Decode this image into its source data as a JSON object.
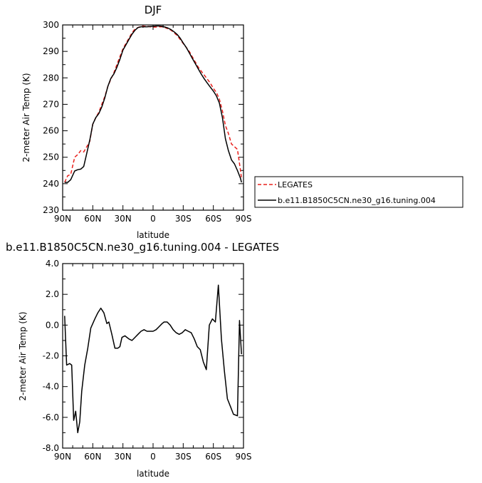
{
  "chart_data": [
    {
      "type": "line",
      "title": "DJF",
      "xlabel": "latitude",
      "ylabel": "2-meter Air Temp (K)",
      "xlim": [
        90,
        -90
      ],
      "ylim": [
        230,
        300
      ],
      "xticks": [
        90,
        60,
        30,
        0,
        -30,
        -60,
        -90
      ],
      "xtick_labels": [
        "90N",
        "60N",
        "30N",
        "0",
        "30S",
        "60S",
        "90S"
      ],
      "yticks": [
        230,
        240,
        250,
        260,
        270,
        280,
        290,
        300
      ],
      "ytick_labels": [
        "230",
        "240",
        "250",
        "260",
        "270",
        "280",
        "290",
        "300"
      ],
      "legend_position": "right",
      "series": [
        {
          "name": "LEGATES",
          "color": "#e8201c",
          "dash": "dashed",
          "x": [
            88,
            85,
            82,
            78,
            75,
            72,
            69,
            66,
            63,
            60,
            57,
            54,
            51,
            48,
            45,
            42,
            39,
            36,
            33,
            30,
            27,
            24,
            21,
            18,
            15,
            12,
            9,
            6,
            3,
            0,
            -3,
            -6,
            -9,
            -12,
            -15,
            -18,
            -21,
            -24,
            -27,
            -30,
            -33,
            -36,
            -39,
            -42,
            -45,
            -48,
            -51,
            -54,
            -57,
            -60,
            -63,
            -66,
            -69,
            -72,
            -75,
            -78,
            -81,
            -84,
            -87,
            -88
          ],
          "y": [
            240.5,
            243,
            243.5,
            250,
            251,
            252.5,
            252,
            254,
            256,
            262.5,
            265,
            267,
            270,
            273,
            276.8,
            279.5,
            282,
            285,
            288,
            291,
            293,
            295,
            297,
            298.5,
            299,
            299.5,
            299.5,
            299.5,
            299.3,
            299.2,
            299.2,
            299.3,
            299.3,
            299,
            298.5,
            298,
            297,
            296,
            294.5,
            293,
            291.5,
            290,
            288,
            286,
            284,
            282.5,
            281,
            279.5,
            278,
            276,
            274.5,
            272,
            267.5,
            262,
            259,
            255,
            254,
            253,
            245,
            242
          ]
        },
        {
          "name": "b.e11.B1850C5CN.ne30_g16.tuning.004",
          "color": "#000000",
          "dash": "solid",
          "x": [
            88,
            85,
            82,
            78,
            75,
            72,
            69,
            66,
            63,
            60,
            57,
            54,
            51,
            48,
            45,
            42,
            39,
            36,
            33,
            30,
            27,
            24,
            21,
            18,
            15,
            12,
            9,
            6,
            3,
            0,
            -3,
            -6,
            -9,
            -12,
            -15,
            -18,
            -21,
            -24,
            -27,
            -30,
            -33,
            -36,
            -39,
            -42,
            -45,
            -48,
            -51,
            -54,
            -57,
            -60,
            -63,
            -66,
            -69,
            -72,
            -75,
            -78,
            -81,
            -84,
            -87,
            -88
          ],
          "y": [
            240.5,
            240.5,
            241.5,
            244.8,
            245.3,
            245.5,
            246.5,
            251.5,
            256.5,
            262.5,
            265,
            266.5,
            269,
            272.5,
            276.8,
            279.8,
            281.5,
            284,
            287,
            290.5,
            292.5,
            294.5,
            296.5,
            298,
            299,
            299.3,
            299.3,
            299.3,
            299.4,
            299.5,
            299.6,
            299.6,
            299.5,
            299.2,
            298.8,
            298.2,
            297.4,
            296.4,
            295,
            293.2,
            291.5,
            289.5,
            287.4,
            285.4,
            283.4,
            281.4,
            279.6,
            278,
            276.5,
            275,
            273.2,
            270.5,
            265,
            257,
            252.5,
            249,
            247.5,
            245,
            242,
            240.5
          ]
        }
      ]
    },
    {
      "type": "line",
      "title": "b.e11.B1850C5CN.ne30_g16.tuning.004 - LEGATES",
      "xlabel": "latitude",
      "ylabel": "2-meter Air Temp (K)",
      "xlim": [
        90,
        -90
      ],
      "ylim": [
        -8.0,
        4.0
      ],
      "xticks": [
        90,
        60,
        30,
        0,
        -30,
        -60,
        -90
      ],
      "xtick_labels": [
        "90N",
        "60N",
        "30N",
        "0",
        "30S",
        "60S",
        "90S"
      ],
      "yticks": [
        -8.0,
        -6.0,
        -4.0,
        -2.0,
        0.0,
        2.0,
        4.0
      ],
      "ytick_labels": [
        "-8.0",
        "-6.0",
        "-4.0",
        "-2.0",
        "0.0",
        "2.0",
        "4.0"
      ],
      "series": [
        {
          "color": "#000000",
          "dash": "solid",
          "x": [
            88,
            86,
            83,
            81,
            79,
            77,
            75,
            73,
            71,
            68,
            65,
            62,
            58,
            55,
            52,
            49,
            46,
            44,
            41,
            38,
            35,
            33,
            31,
            28,
            26,
            24,
            21,
            18,
            15,
            12,
            9,
            6,
            3,
            0,
            -3,
            -6,
            -9,
            -11,
            -14,
            -17,
            -20,
            -23,
            -26,
            -29,
            -32,
            -35,
            -38,
            -41,
            -44,
            -47,
            -50,
            -53,
            -56,
            -59,
            -62,
            -65,
            -68,
            -71,
            -74,
            -77,
            -80,
            -84,
            -86,
            -88
          ],
          "y": [
            0.6,
            -2.6,
            -2.5,
            -2.6,
            -6.2,
            -5.6,
            -7.0,
            -6.3,
            -4.3,
            -2.6,
            -1.5,
            -0.2,
            0.4,
            0.8,
            1.1,
            0.8,
            0.1,
            0.2,
            -0.6,
            -1.5,
            -1.5,
            -1.4,
            -0.8,
            -0.7,
            -0.8,
            -0.9,
            -1.0,
            -0.8,
            -0.6,
            -0.4,
            -0.3,
            -0.4,
            -0.4,
            -0.4,
            -0.3,
            -0.1,
            0.1,
            0.2,
            0.2,
            0.0,
            -0.3,
            -0.5,
            -0.6,
            -0.5,
            -0.3,
            -0.4,
            -0.5,
            -0.9,
            -1.4,
            -1.6,
            -2.4,
            -2.9,
            0.0,
            0.4,
            0.2,
            2.6,
            -0.9,
            -3.0,
            -4.8,
            -5.3,
            -5.8,
            -5.9,
            0.3,
            -1.9
          ]
        }
      ]
    }
  ]
}
